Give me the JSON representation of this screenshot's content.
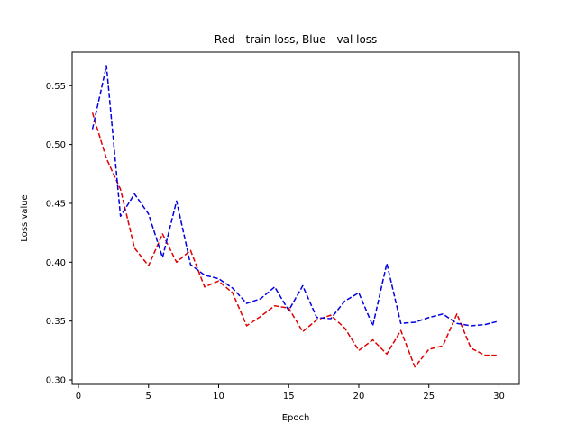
{
  "chart_data": {
    "type": "line",
    "title": "Red - train loss, Blue - val loss",
    "xlabel": "Epoch",
    "ylabel": "Loss value",
    "xlim": [
      -0.45,
      31.45
    ],
    "ylim": [
      0.2962,
      0.5785
    ],
    "xticks": [
      0,
      5,
      10,
      15,
      20,
      25,
      30
    ],
    "yticks": [
      0.3,
      0.35,
      0.4,
      0.45,
      0.5,
      0.55
    ],
    "ytick_labels": [
      "0.30",
      "0.35",
      "0.40",
      "0.45",
      "0.50",
      "0.55"
    ],
    "grid": false,
    "legend": "none",
    "x": [
      1,
      2,
      3,
      4,
      5,
      6,
      7,
      8,
      9,
      10,
      11,
      12,
      13,
      14,
      15,
      16,
      17,
      18,
      19,
      20,
      21,
      22,
      23,
      24,
      25,
      26,
      27,
      28,
      29,
      30
    ],
    "series": [
      {
        "color": "#e00000",
        "style": "dashed",
        "values": [
          0.527,
          0.488,
          0.462,
          0.412,
          0.397,
          0.424,
          0.4,
          0.41,
          0.379,
          0.384,
          0.374,
          0.346,
          0.354,
          0.363,
          0.361,
          0.341,
          0.351,
          0.355,
          0.344,
          0.325,
          0.334,
          0.322,
          0.342,
          0.311,
          0.326,
          0.329,
          0.356,
          0.327,
          0.321,
          0.321
        ]
      },
      {
        "color": "#0000e0",
        "style": "dashed",
        "values": [
          0.513,
          0.567,
          0.439,
          0.458,
          0.441,
          0.404,
          0.452,
          0.398,
          0.389,
          0.386,
          0.378,
          0.365,
          0.369,
          0.379,
          0.359,
          0.38,
          0.353,
          0.352,
          0.367,
          0.374,
          0.346,
          0.399,
          0.348,
          0.349,
          0.353,
          0.356,
          0.348,
          0.346,
          0.347,
          0.35
        ]
      }
    ]
  }
}
